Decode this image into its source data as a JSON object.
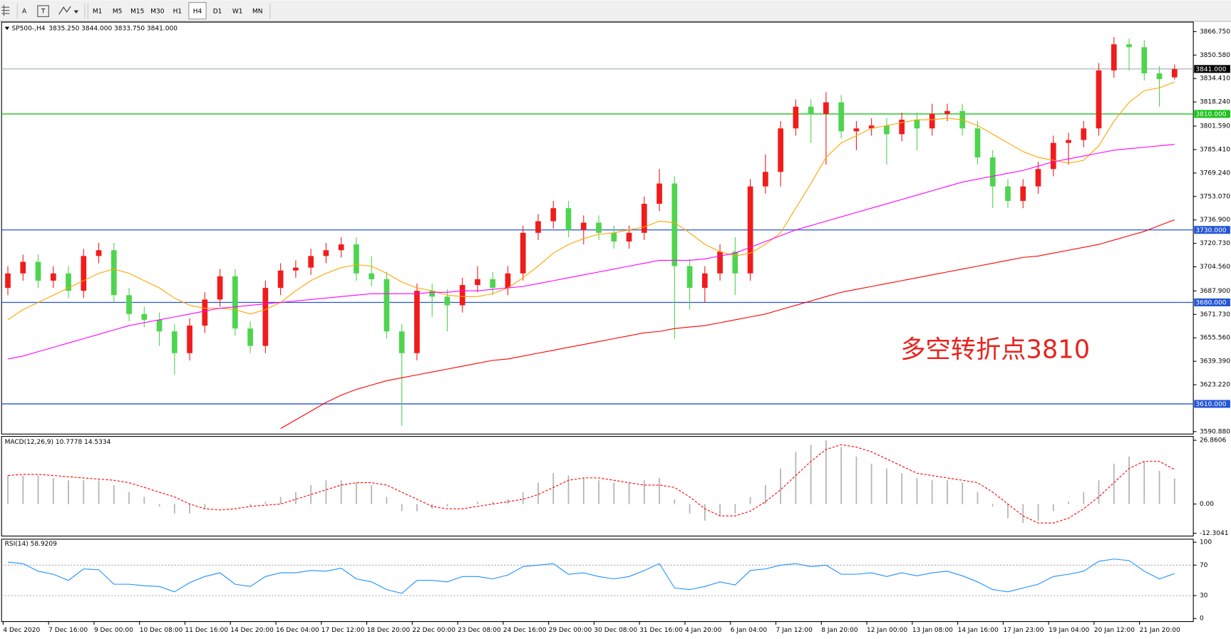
{
  "toolbar": {
    "text_tool": "A",
    "timeframes": [
      "M1",
      "M5",
      "M15",
      "M30",
      "H1",
      "H4",
      "D1",
      "W1",
      "MN"
    ],
    "active_index": 5
  },
  "chart_data": [
    {
      "type": "candlestick",
      "title": "SP500-,H4",
      "legend_text": "3835.250 3844.000 3833.750 3841.000",
      "annotation": "多空转折点3810",
      "annotation_color": "#e8231e",
      "categories": [
        "4 Dec 2020",
        null,
        null,
        "7 Dec 16:00",
        null,
        null,
        "9 Dec 00:00",
        null,
        null,
        "10 Dec 08:00",
        null,
        null,
        "11 Dec 16:00",
        null,
        null,
        "14 Dec 20:00",
        null,
        null,
        "16 Dec 04:00",
        null,
        null,
        "17 Dec 12:00",
        null,
        null,
        "18 Dec 20:00",
        null,
        null,
        "22 Dec 00:00",
        null,
        null,
        "23 Dec 08:00",
        null,
        null,
        "24 Dec 16:00",
        null,
        null,
        "29 Dec 00:00",
        null,
        null,
        "30 Dec 08:00",
        null,
        null,
        "31 Dec 16:00",
        null,
        null,
        "4 Jan 20:00",
        null,
        null,
        "6 Jan 04:00",
        null,
        null,
        "7 Jan 12:00",
        null,
        null,
        "8 Jan 20:00",
        null,
        null,
        "12 Jan 00:00",
        null,
        null,
        "13 Jan 08:00",
        null,
        null,
        "14 Jan 16:00",
        null,
        null,
        "17 Jan 23:00",
        null,
        null,
        "19 Jan 04:00",
        null,
        null,
        "20 Jan 12:00",
        null,
        null,
        "21 Jan 20:00",
        null,
        null
      ],
      "open": [
        3690,
        3700,
        3708,
        3695,
        3700,
        3688,
        3712,
        3716,
        3685,
        3672,
        3668,
        3660,
        3645,
        3664,
        3682,
        3698,
        3662,
        3650,
        3690,
        3702,
        3704,
        3712,
        3716,
        3720,
        3700,
        3696,
        3660,
        3645,
        3688,
        3684,
        3678,
        3692,
        3696,
        3690,
        3700,
        3728,
        3736,
        3745,
        3730,
        3735,
        3728,
        3722,
        3728,
        3748,
        3762,
        3705,
        3690,
        3700,
        3715,
        3700,
        3760,
        3770,
        3800,
        3815,
        3810,
        3818,
        3798,
        3800,
        3802,
        3796,
        3806,
        3800,
        3810,
        3812,
        3800,
        3780,
        3760,
        3750,
        3760,
        3772,
        3790,
        3792,
        3800,
        3840,
        3858,
        3856,
        3838,
        3835.25
      ],
      "high": [
        3705,
        3713,
        3713,
        3705,
        3705,
        3717,
        3721,
        3721,
        3690,
        3677,
        3673,
        3665,
        3669,
        3687,
        3703,
        3703,
        3667,
        3695,
        3707,
        3709,
        3717,
        3721,
        3725,
        3725,
        3712,
        3701,
        3665,
        3693,
        3693,
        3689,
        3697,
        3705,
        3701,
        3705,
        3733,
        3741,
        3750,
        3750,
        3740,
        3740,
        3733,
        3733,
        3753,
        3772,
        3767,
        3710,
        3705,
        3720,
        3725,
        3765,
        3782,
        3805,
        3820,
        3820,
        3825,
        3823,
        3805,
        3807,
        3807,
        3811,
        3811,
        3817,
        3817,
        3817,
        3805,
        3785,
        3765,
        3765,
        3777,
        3795,
        3797,
        3805,
        3845,
        3863,
        3862,
        3861,
        3843,
        3844
      ],
      "low": [
        3685,
        3695,
        3690,
        3690,
        3683,
        3683,
        3707,
        3680,
        3667,
        3663,
        3650,
        3630,
        3640,
        3659,
        3677,
        3657,
        3645,
        3645,
        3685,
        3697,
        3699,
        3707,
        3711,
        3695,
        3691,
        3655,
        3595,
        3640,
        3670,
        3660,
        3673,
        3687,
        3685,
        3685,
        3695,
        3723,
        3731,
        3725,
        3720,
        3723,
        3717,
        3717,
        3723,
        3743,
        3655,
        3675,
        3680,
        3695,
        3685,
        3695,
        3755,
        3760,
        3795,
        3790,
        3775,
        3793,
        3785,
        3795,
        3775,
        3791,
        3785,
        3795,
        3805,
        3795,
        3775,
        3745,
        3745,
        3745,
        3755,
        3767,
        3775,
        3787,
        3795,
        3835,
        3840,
        3833,
        3815,
        3833.75
      ],
      "close": [
        3700,
        3708,
        3695,
        3700,
        3688,
        3712,
        3716,
        3685,
        3672,
        3668,
        3660,
        3645,
        3664,
        3682,
        3698,
        3662,
        3650,
        3690,
        3702,
        3704,
        3712,
        3716,
        3720,
        3700,
        3696,
        3660,
        3645,
        3688,
        3684,
        3678,
        3692,
        3696,
        3690,
        3700,
        3728,
        3736,
        3745,
        3730,
        3735,
        3728,
        3722,
        3728,
        3748,
        3762,
        3705,
        3690,
        3700,
        3715,
        3700,
        3760,
        3770,
        3800,
        3815,
        3810,
        3818,
        3798,
        3800,
        3802,
        3796,
        3806,
        3800,
        3810,
        3812,
        3800,
        3780,
        3760,
        3750,
        3760,
        3772,
        3790,
        3792,
        3800,
        3840,
        3858,
        3856,
        3838,
        3834,
        3841
      ],
      "up_color": "#f01c1c",
      "down_color": "#4fd44f",
      "series": [
        {
          "color": "#ffa500",
          "values": [
            3668,
            3675,
            3680,
            3685,
            3690,
            3695,
            3700,
            3703,
            3700,
            3695,
            3690,
            3683,
            3678,
            3676,
            3676,
            3675,
            3672,
            3675,
            3680,
            3688,
            3695,
            3700,
            3704,
            3706,
            3705,
            3700,
            3694,
            3690,
            3688,
            3685,
            3684,
            3684,
            3686,
            3690,
            3697,
            3705,
            3714,
            3720,
            3724,
            3727,
            3728,
            3730,
            3732,
            3736,
            3735,
            3728,
            3720,
            3715,
            3712,
            3714,
            3720,
            3728,
            3745,
            3762,
            3780,
            3790,
            3795,
            3800,
            3802,
            3804,
            3806,
            3806,
            3807,
            3806,
            3802,
            3796,
            3790,
            3784,
            3780,
            3778,
            3776,
            3778,
            3788,
            3805,
            3818,
            3826,
            3828,
            3832
          ]
        },
        {
          "color": "#ff00ff",
          "values": [
            3641,
            3643,
            3646,
            3649,
            3652,
            3655,
            3658,
            3661,
            3664,
            3666,
            3668,
            3670,
            3672,
            3674,
            3676,
            3677,
            3678,
            3679,
            3680,
            3681,
            3682,
            3683,
            3684,
            3685,
            3686,
            3686,
            3686,
            3686,
            3687,
            3687,
            3688,
            3688,
            3689,
            3690,
            3691,
            3693,
            3695,
            3697,
            3699,
            3701,
            3703,
            3705,
            3707,
            3709,
            3709,
            3709,
            3710,
            3712,
            3714,
            3718,
            3722,
            3726,
            3730,
            3733,
            3736,
            3739,
            3742,
            3745,
            3748,
            3751,
            3754,
            3757,
            3760,
            3763,
            3765,
            3767,
            3769,
            3771,
            3774,
            3777,
            3779,
            3781,
            3783,
            3785,
            3786,
            3787,
            3788,
            3789
          ]
        },
        {
          "color": "#ff0000",
          "values": [
            null,
            null,
            null,
            null,
            null,
            null,
            null,
            null,
            null,
            null,
            null,
            null,
            null,
            null,
            null,
            null,
            null,
            null,
            3593,
            3599,
            3605,
            3611,
            3616,
            3620,
            3623,
            3626,
            3628,
            3630,
            3632,
            3634,
            3636,
            3638,
            3640,
            3641,
            3643,
            3645,
            3647,
            3649,
            3651,
            3653,
            3655,
            3657,
            3659,
            3660,
            3662,
            3663,
            3664,
            3666,
            3668,
            3670,
            3672,
            3675,
            3678,
            3681,
            3684,
            3687,
            3689,
            3691,
            3693,
            3695,
            3697,
            3699,
            3701,
            3703,
            3705,
            3707,
            3709,
            3711,
            3712,
            3714,
            3716,
            3718,
            3720,
            3723,
            3726,
            3729,
            3733,
            3737
          ]
        }
      ],
      "levels": [
        {
          "value": 3810,
          "label": "3810.000",
          "color": "#19c319"
        },
        {
          "value": 3730,
          "label": "3730.000",
          "color": "#2455d6"
        },
        {
          "value": 3680,
          "label": "3680.000",
          "color": "#2455d6"
        },
        {
          "value": 3610,
          "label": "3610.000",
          "color": "#2455d6"
        }
      ],
      "current": {
        "value": 3841,
        "label": "3841.000",
        "color": "#8596a8"
      },
      "ylim": [
        3589.2,
        3873.3
      ],
      "yticks": [
        {
          "value": 3866.75,
          "label": "3866.750"
        },
        {
          "value": 3850.58,
          "label": "3850.580"
        },
        {
          "value": 3834.41,
          "label": "3834.410"
        },
        {
          "value": 3818.24,
          "label": "3818.240"
        },
        {
          "value": 3801.59,
          "label": "3801.590"
        },
        {
          "value": 3785.41,
          "label": "3785.410"
        },
        {
          "value": 3769.24,
          "label": "3769.240"
        },
        {
          "value": 3753.07,
          "label": "3753.070"
        },
        {
          "value": 3736.9,
          "label": "3736.900"
        },
        {
          "value": 3720.73,
          "label": "3720.730"
        },
        {
          "value": 3704.56,
          "label": "3704.560"
        },
        {
          "value": 3687.9,
          "label": "3687.900"
        },
        {
          "value": 3671.73,
          "label": "3671.730"
        },
        {
          "value": 3655.56,
          "label": "3655.560"
        },
        {
          "value": 3639.39,
          "label": "3639.390"
        },
        {
          "value": 3623.22,
          "label": "3623.220"
        },
        {
          "value": 3590.88,
          "label": "3590.880"
        }
      ]
    },
    {
      "type": "bar_line",
      "title": "MACD(12,26,9) 10.7778 14.5334",
      "color": "#b4b4b4",
      "values": [
        12,
        12,
        12,
        11,
        10,
        10,
        10,
        8,
        5,
        3,
        -1,
        -4,
        -4,
        -2,
        0,
        0,
        -1,
        1,
        3,
        5,
        8,
        10,
        10,
        9,
        8,
        3,
        -3,
        -3,
        -2,
        -1,
        0,
        1,
        1,
        2,
        5,
        9,
        13,
        12,
        11,
        10,
        9,
        9,
        10,
        11,
        2,
        -4,
        -7,
        -5,
        -4,
        3,
        8,
        15,
        22,
        25,
        27,
        24,
        20,
        17,
        15,
        13,
        11,
        10,
        10,
        9,
        5,
        -1,
        -6,
        -8,
        -7,
        -3,
        1,
        5,
        10,
        17,
        20,
        18,
        14,
        10.8
      ],
      "signal": {
        "color": "#ff0000",
        "values": [
          12,
          12.5,
          12.5,
          12,
          11.5,
          11,
          10.5,
          10,
          9,
          7,
          5,
          3,
          0,
          -2,
          -2.5,
          -2,
          -1,
          -0.5,
          0,
          2,
          4,
          6,
          8,
          9,
          9,
          8,
          5,
          2,
          -1,
          -2,
          -2,
          -1,
          0,
          1,
          2,
          4,
          7,
          10,
          11,
          11,
          10,
          9,
          8,
          8,
          7,
          3,
          -2,
          -5,
          -5,
          -3,
          1,
          6,
          12,
          18,
          23,
          25,
          24,
          22,
          19,
          16,
          13,
          12,
          11,
          10,
          9,
          5,
          0,
          -5,
          -8,
          -8,
          -6,
          -2,
          3,
          9,
          15,
          18,
          18,
          14.5
        ]
      },
      "ylim": [
        -13.5,
        28.5
      ],
      "yticks": [
        26.8606,
        {
          "value": 0,
          "label": "0.00"
        },
        -12.3041
      ]
    },
    {
      "type": "line",
      "title": "RSI(14) 58.9209",
      "color": "#1e90ff",
      "values": [
        74,
        72,
        62,
        58,
        50,
        65,
        64,
        45,
        45,
        43,
        42,
        35,
        47,
        55,
        60,
        45,
        42,
        55,
        60,
        60,
        63,
        62,
        66,
        52,
        48,
        38,
        33,
        50,
        50,
        48,
        55,
        55,
        52,
        57,
        68,
        70,
        72,
        58,
        60,
        55,
        52,
        55,
        63,
        72,
        40,
        38,
        42,
        48,
        44,
        63,
        65,
        70,
        72,
        68,
        70,
        58,
        58,
        60,
        55,
        60,
        56,
        60,
        62,
        56,
        48,
        38,
        35,
        40,
        45,
        55,
        58,
        62,
        75,
        78,
        76,
        62,
        52,
        58.9
      ],
      "levels": [
        70,
        30
      ],
      "ylim": [
        -4,
        104
      ],
      "yticks": [
        100,
        70,
        30,
        0
      ]
    }
  ]
}
